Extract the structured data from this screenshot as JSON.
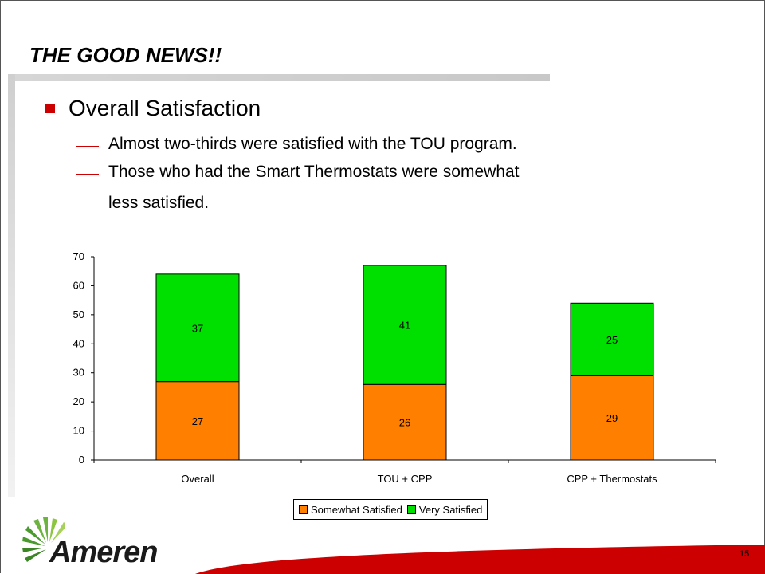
{
  "slide": {
    "title": "THE GOOD NEWS!!",
    "bullet": "Overall Satisfaction",
    "sub_bullets": [
      "Almost two-thirds were satisfied with the TOU program.",
      "Those who had the Smart Thermostats were somewhat",
      "less satisfied."
    ],
    "logo_text": "Ameren",
    "page_number": "15",
    "colors": {
      "accent": "#cc0000",
      "somewhat": "#ff8000",
      "very": "#00e000"
    }
  },
  "chart_data": {
    "type": "bar",
    "stacked": true,
    "categories": [
      "Overall",
      "TOU + CPP",
      "CPP + Thermostats"
    ],
    "series": [
      {
        "name": "Somewhat Satisfied",
        "values": [
          27,
          26,
          29
        ],
        "color": "#ff8000"
      },
      {
        "name": "Very Satisfied",
        "values": [
          37,
          41,
          25
        ],
        "color": "#00e000"
      }
    ],
    "ylim": [
      0,
      70
    ],
    "yticks": [
      0,
      10,
      20,
      30,
      40,
      50,
      60,
      70
    ],
    "legend": "bottom"
  }
}
